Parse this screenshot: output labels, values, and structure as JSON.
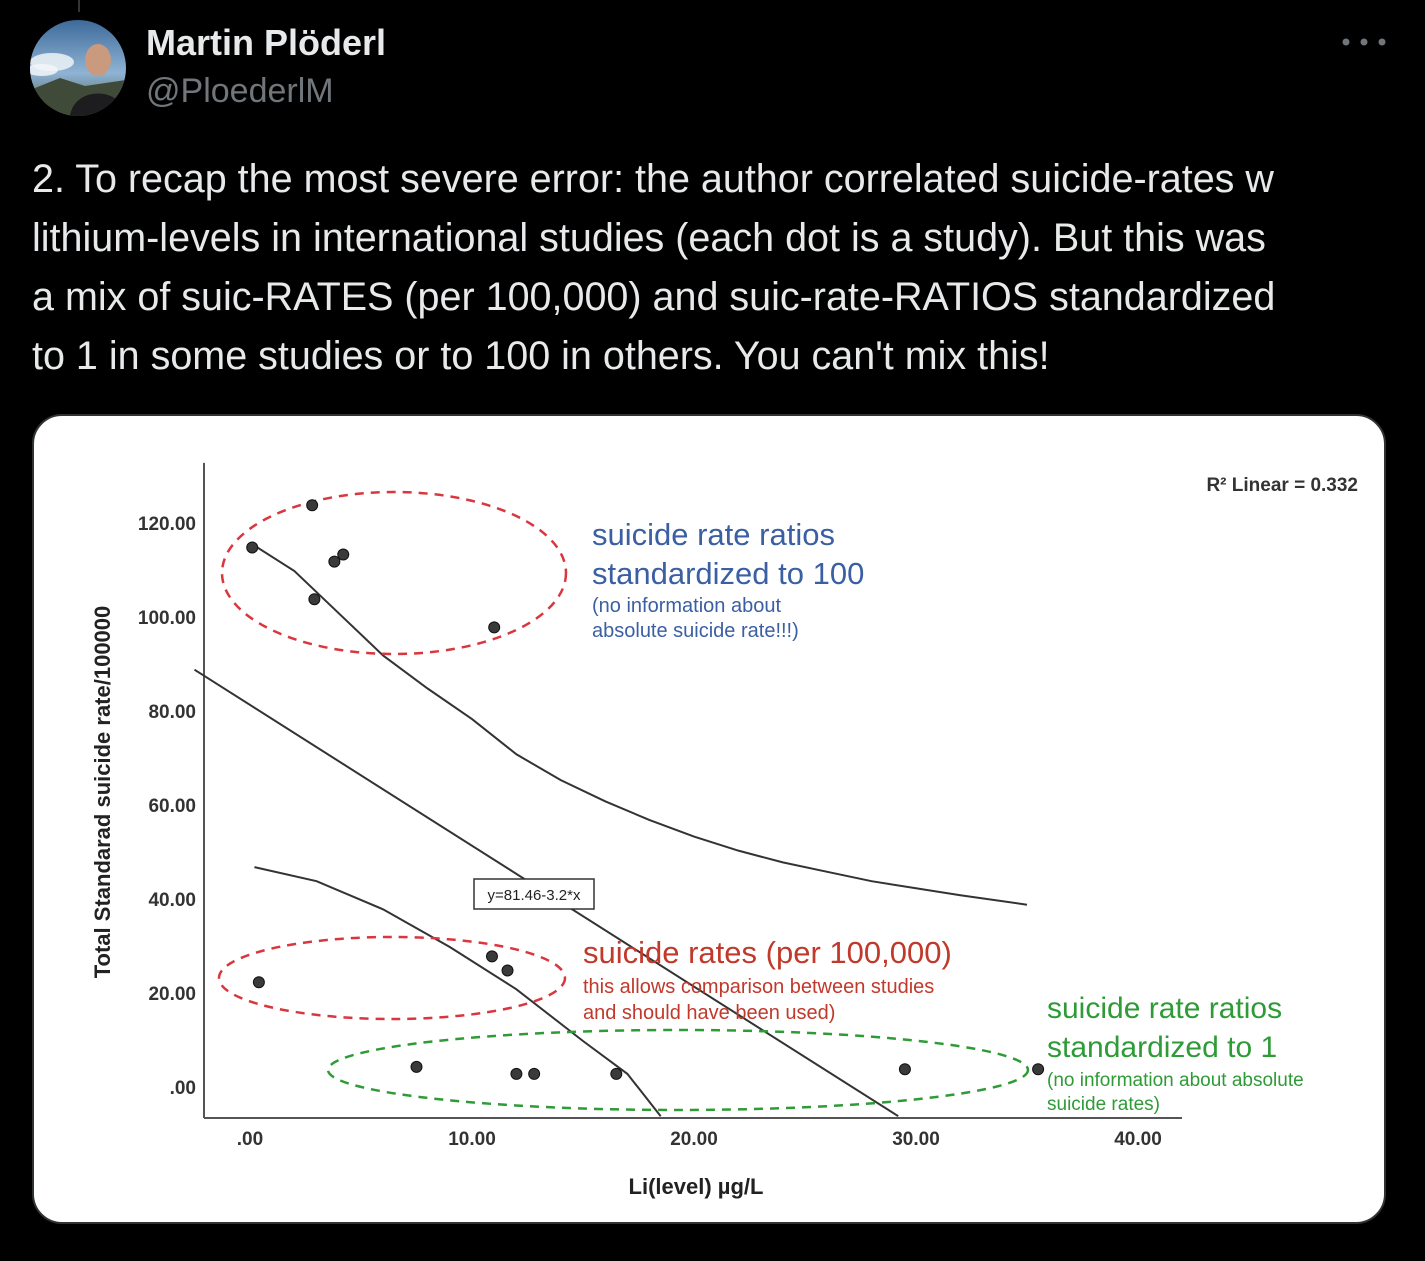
{
  "author": {
    "name": "Martin Plöderl",
    "handle": "@PloederlM",
    "avatar_icon": "user-avatar-photo"
  },
  "more_icon": "more-options-icon",
  "tweet": {
    "lines": [
      "2. To recap the most severe error: the author correlated suicide-rates w",
      "lithium-levels in international studies (each dot is a study). But this was",
      "a mix of suic-RATES (per 100,000) and suic-rate-RATIOS standardized",
      "to 1 in some studies or to 100 in others. You can't mix this!"
    ]
  },
  "chart_data": {
    "type": "scatter",
    "xlabel": "Li(level) µg/L",
    "ylabel": "Total Standarad suicide rate/100000",
    "x_ticks": [
      ".00",
      "10.00",
      "20.00",
      "30.00",
      "40.00"
    ],
    "y_ticks": [
      ".00",
      "20.00",
      "40.00",
      "60.00",
      "80.00",
      "100.00",
      "120.00"
    ],
    "xlim": [
      -2,
      42
    ],
    "ylim": [
      -6,
      133
    ],
    "r2_label": "R² Linear = 0.332",
    "fit_label": "y=81.46-3.2*x",
    "points": [
      {
        "x": 0.1,
        "y": 115
      },
      {
        "x": 2.8,
        "y": 124
      },
      {
        "x": 3.8,
        "y": 112
      },
      {
        "x": 4.2,
        "y": 113.5
      },
      {
        "x": 2.9,
        "y": 104
      },
      {
        "x": 11.0,
        "y": 98
      },
      {
        "x": 0.4,
        "y": 22.5
      },
      {
        "x": 10.9,
        "y": 28
      },
      {
        "x": 11.6,
        "y": 25
      },
      {
        "x": 7.5,
        "y": 4.5
      },
      {
        "x": 12.0,
        "y": 3
      },
      {
        "x": 12.8,
        "y": 3
      },
      {
        "x": 16.5,
        "y": 3
      },
      {
        "x": 29.5,
        "y": 4
      },
      {
        "x": 35.5,
        "y": 4
      }
    ],
    "lines": [
      {
        "kind": "linear-fit",
        "points": [
          [
            -2.5,
            89
          ],
          [
            29.2,
            -6
          ]
        ]
      },
      {
        "kind": "upper-band",
        "points": [
          [
            0,
            116
          ],
          [
            2,
            110
          ],
          [
            4,
            101
          ],
          [
            6,
            92
          ],
          [
            8,
            85
          ],
          [
            10,
            78.5
          ],
          [
            12,
            71
          ],
          [
            14,
            65.5
          ],
          [
            16,
            61
          ],
          [
            18,
            57
          ],
          [
            20,
            53.5
          ],
          [
            22,
            50.5
          ],
          [
            24,
            48
          ],
          [
            26,
            46
          ],
          [
            28,
            44
          ],
          [
            30,
            42.5
          ],
          [
            32,
            41
          ],
          [
            35,
            39
          ]
        ]
      },
      {
        "kind": "lower-band",
        "points": [
          [
            0.2,
            47
          ],
          [
            3,
            44
          ],
          [
            6,
            38
          ],
          [
            9,
            30
          ],
          [
            12,
            21
          ],
          [
            15,
            10
          ],
          [
            17,
            3
          ],
          [
            18.5,
            -6
          ]
        ]
      }
    ],
    "annotations": [
      {
        "group": "ratios-100",
        "color": "#3b5fa3",
        "title_lines": [
          "suicide rate ratios",
          "standardized to 100"
        ],
        "note_lines": [
          "(no information about",
          "absolute suicide rate!!!)"
        ]
      },
      {
        "group": "rates-100000",
        "color": "#c0392b",
        "title_lines": [
          "suicide rates (per 100,000)"
        ],
        "note_lines": [
          "this allows comparison between studies",
          "and should have been used)"
        ]
      },
      {
        "group": "ratios-1",
        "color": "#2e9b36",
        "title_lines": [
          "suicide rate ratios",
          "standardized to 1"
        ],
        "note_lines": [
          "(no information about absolute",
          "suicide rates)"
        ]
      }
    ]
  }
}
